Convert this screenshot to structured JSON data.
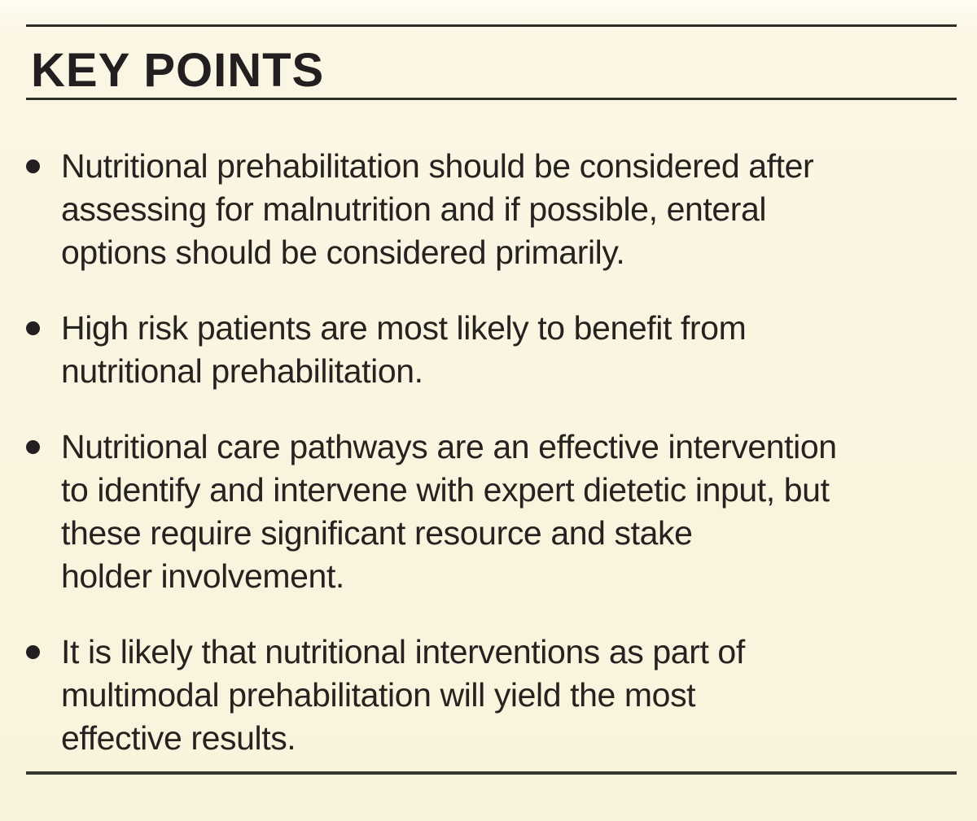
{
  "panel": {
    "title": "KEY POINTS",
    "bullet_glyph": "•",
    "key_points": [
      "Nutritional prehabilitation should be considered after\nassessing for malnutrition and if possible, enteral\noptions should be considered primarily.",
      "High risk patients are most likely to benefit from\nnutritional prehabilitation.",
      "Nutritional care pathways are an effective intervention\nto identify and intervene with expert dietetic input, but\nthese require significant resource and stake\nholder involvement.",
      "It is likely that nutritional interventions as part of\nmultimodal prehabilitation will yield the most\neffective results."
    ],
    "colors": {
      "background": "#FBF5E1",
      "text": "#231F20",
      "rule": "#2F2F28"
    }
  }
}
